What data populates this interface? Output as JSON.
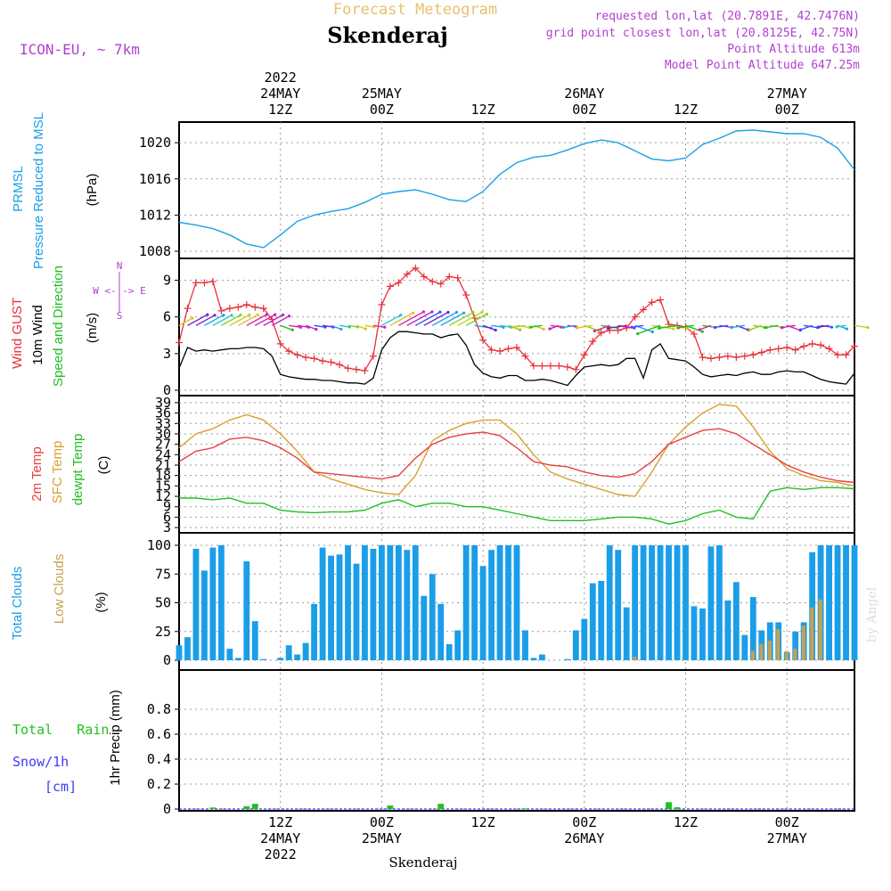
{
  "header": {
    "title": "Skenderaj",
    "subtitle": "Forecast Meteogram",
    "model": "ICON-EU, ~ 7km",
    "requested": "requested lon,lat (20.7891E, 42.7476N)",
    "gridpoint": "grid point closest lon,lat (20.8125E, 42.75N)",
    "point_alt": "Point Altitude 613m",
    "model_alt": "Model Point Altitude 647.25m",
    "footer": "Skenderaj",
    "credit": "by Angel"
  },
  "time_axis": {
    "year": "2022",
    "ticks": [
      {
        "t": 12,
        "hour": "12Z",
        "date": "24MAY",
        "year": "2022"
      },
      {
        "t": 24,
        "hour": "00Z",
        "date": "25MAY"
      },
      {
        "t": 36,
        "hour": "12Z",
        "date": ""
      },
      {
        "t": 48,
        "hour": "00Z",
        "date": "26MAY"
      },
      {
        "t": 60,
        "hour": "12Z",
        "date": ""
      },
      {
        "t": 72,
        "hour": "00Z",
        "date": "27MAY"
      }
    ]
  },
  "colors": {
    "pressure": "#1aa0ea",
    "gust": "#e8303a",
    "wind": "#000000",
    "temp2m": "#e84040",
    "sfc": "#d9a030",
    "dewpt": "#20c020",
    "total_clouds": "#1a9ee8",
    "low_clouds": "#c8a050",
    "rain": "#20c020",
    "snow": "#3a3aff",
    "magenta": "#b040d0",
    "gold": "#e8c070"
  },
  "panel_labels": {
    "pressure": {
      "name1": "PRMSL",
      "name2": "Pressure Reduced to MSL",
      "unit": "(hPa)"
    },
    "wind": {
      "gust": "Wind GUST",
      "wind": "10m Wind",
      "dir": "Speed and Direction",
      "unit": "(m/s)",
      "compass_we": "W <-|-> E",
      "compass_n": "N",
      "compass_s": "S"
    },
    "temp": {
      "t2m": "2m Temp",
      "sfc": "SFC Temp",
      "dew": "dewpt Temp",
      "unit": "(C)"
    },
    "clouds": {
      "total": "Total Clouds",
      "low": "Low Clouds",
      "unit": "(%)"
    },
    "precip": {
      "rain": "Total   Rain",
      "snow": "Snow/1h",
      "snow_unit": "[cm]",
      "ylabel": "1hr Precip (mm)"
    }
  },
  "chart_data": [
    {
      "type": "line",
      "panel": "pressure",
      "title": "PRMSL Pressure Reduced to MSL",
      "ylabel": "(hPa)",
      "ylim": [
        1008,
        1021
      ],
      "yticks": [
        1008,
        1012,
        1016,
        1020
      ],
      "x": [
        0,
        2,
        4,
        6,
        8,
        10,
        12,
        14,
        16,
        18,
        20,
        22,
        24,
        26,
        28,
        30,
        32,
        34,
        36,
        38,
        40,
        42,
        44,
        46,
        48,
        50,
        52,
        54,
        56,
        58,
        60,
        62,
        64,
        66,
        68,
        70,
        72,
        74,
        76,
        78,
        80
      ],
      "series": [
        {
          "name": "PRMSL",
          "values": [
            1011.2,
            1010.9,
            1010.5,
            1009.8,
            1008.8,
            1008.4,
            1009.8,
            1011.3,
            1012.0,
            1012.4,
            1012.7,
            1013.4,
            1014.3,
            1014.6,
            1014.8,
            1014.3,
            1013.7,
            1013.5,
            1014.6,
            1016.5,
            1017.8,
            1018.4,
            1018.6,
            1019.2,
            1019.9,
            1020.3,
            1020.0,
            1019.1,
            1018.2,
            1018.0,
            1018.3,
            1019.8,
            1020.5,
            1021.3,
            1021.4,
            1021.2,
            1021.0,
            1021.0,
            1020.6,
            1019.4,
            1017.0
          ]
        }
      ]
    },
    {
      "type": "line",
      "panel": "wind",
      "ylabel": "(m/s)",
      "ylim": [
        0,
        10.5
      ],
      "yticks": [
        0,
        3,
        6,
        9
      ],
      "x": [
        0,
        1,
        2,
        3,
        4,
        5,
        6,
        7,
        8,
        9,
        10,
        11,
        12,
        13,
        14,
        15,
        16,
        17,
        18,
        19,
        20,
        21,
        22,
        23,
        24,
        25,
        26,
        27,
        28,
        29,
        30,
        31,
        32,
        33,
        34,
        35,
        36,
        37,
        38,
        39,
        40,
        41,
        42,
        43,
        44,
        45,
        46,
        47,
        48,
        49,
        50,
        51,
        52,
        53,
        54,
        55,
        56,
        57,
        58,
        59,
        60,
        61,
        62,
        63,
        64,
        65,
        66,
        67,
        68,
        69,
        70,
        71,
        72,
        73,
        74,
        75,
        76,
        77,
        78,
        79,
        80
      ],
      "series": [
        {
          "name": "Wind GUST",
          "values": [
            3.9,
            6.7,
            8.8,
            8.8,
            8.9,
            6.5,
            6.7,
            6.8,
            7.0,
            6.8,
            6.7,
            5.8,
            3.8,
            3.2,
            2.9,
            2.7,
            2.6,
            2.4,
            2.3,
            2.1,
            1.8,
            1.7,
            1.6,
            2.8,
            7.0,
            8.5,
            8.8,
            9.5,
            10.0,
            9.3,
            8.9,
            8.7,
            9.3,
            9.2,
            7.8,
            5.9,
            4.1,
            3.3,
            3.2,
            3.4,
            3.5,
            2.8,
            2.0,
            2.0,
            2.0,
            2.0,
            1.9,
            1.7,
            2.9,
            4.0,
            4.7,
            4.9,
            4.9,
            5.1,
            6.0,
            6.6,
            7.2,
            7.4,
            5.4,
            5.3,
            5.2,
            4.6,
            2.7,
            2.6,
            2.7,
            2.8,
            2.7,
            2.8,
            2.9,
            3.1,
            3.3,
            3.4,
            3.5,
            3.3,
            3.6,
            3.8,
            3.7,
            3.4,
            2.9,
            2.9,
            3.6
          ]
        },
        {
          "name": "10m Wind",
          "values": [
            1.8,
            3.5,
            3.2,
            3.3,
            3.2,
            3.3,
            3.4,
            3.4,
            3.5,
            3.5,
            3.4,
            2.8,
            1.3,
            1.1,
            1.0,
            0.9,
            0.9,
            0.8,
            0.8,
            0.7,
            0.6,
            0.6,
            0.5,
            1.0,
            3.3,
            4.3,
            4.8,
            4.8,
            4.7,
            4.6,
            4.6,
            4.3,
            4.5,
            4.6,
            3.7,
            2.1,
            1.4,
            1.1,
            1.0,
            1.2,
            1.2,
            0.8,
            0.8,
            0.9,
            0.8,
            0.6,
            0.4,
            1.2,
            1.9,
            2.0,
            2.1,
            2.0,
            2.1,
            2.6,
            2.6,
            1.0,
            3.3,
            3.8,
            2.6,
            2.5,
            2.4,
            1.9,
            1.3,
            1.1,
            1.2,
            1.3,
            1.2,
            1.4,
            1.5,
            1.3,
            1.3,
            1.5,
            1.6,
            1.5,
            1.5,
            1.2,
            0.9,
            0.7,
            0.6,
            0.5,
            1.4
          ]
        }
      ]
    },
    {
      "type": "line",
      "panel": "temperature",
      "ylabel": "(C)",
      "ylim": [
        2,
        40
      ],
      "yticks": [
        3,
        6,
        9,
        12,
        15,
        18,
        21,
        24,
        27,
        30,
        33,
        36,
        39
      ],
      "x": [
        0,
        2,
        4,
        6,
        8,
        10,
        12,
        14,
        16,
        18,
        20,
        22,
        24,
        26,
        28,
        30,
        32,
        34,
        36,
        38,
        40,
        42,
        44,
        46,
        48,
        50,
        52,
        54,
        56,
        58,
        60,
        62,
        64,
        66,
        68,
        70,
        72,
        74,
        76,
        78,
        80
      ],
      "series": [
        {
          "name": "2m Temp",
          "values": [
            22,
            25,
            26,
            28.5,
            29,
            28,
            26,
            23,
            19,
            18.5,
            18,
            17.5,
            17,
            18,
            23,
            27,
            29,
            30,
            30.5,
            29.5,
            26,
            22,
            21,
            20.5,
            19,
            18,
            17.5,
            18.5,
            22,
            27,
            29,
            31,
            31.5,
            30,
            27,
            24,
            21,
            19,
            17.5,
            16.5,
            16
          ]
        },
        {
          "name": "SFC Temp",
          "values": [
            26,
            30,
            31.5,
            34,
            35.5,
            34,
            30,
            25,
            19,
            17,
            15.5,
            14,
            13,
            12.5,
            18,
            28,
            31,
            33,
            34,
            34,
            30,
            24,
            19,
            17,
            15.5,
            14,
            12.5,
            12,
            19,
            27,
            32,
            36,
            38.5,
            38,
            32,
            25,
            20,
            18,
            16.5,
            16,
            15
          ]
        },
        {
          "name": "dewpt Temp",
          "values": [
            11.5,
            11.5,
            11,
            11.5,
            10,
            10,
            8,
            7.5,
            7.3,
            7.5,
            7.5,
            8,
            10,
            11,
            9,
            10,
            10,
            9,
            9,
            8,
            7,
            6,
            5,
            5,
            5,
            5.5,
            6,
            6,
            5.5,
            4,
            5,
            7,
            8,
            6,
            5.5,
            13.5,
            14.5,
            14,
            14.5,
            14.5,
            14.2
          ]
        }
      ]
    },
    {
      "type": "bar",
      "panel": "clouds",
      "ylabel": "(%)",
      "ylim": [
        0,
        100
      ],
      "yticks": [
        0,
        25,
        50,
        75,
        100
      ],
      "x": [
        0,
        1,
        2,
        3,
        4,
        5,
        6,
        7,
        8,
        9,
        10,
        11,
        12,
        13,
        14,
        15,
        16,
        17,
        18,
        19,
        20,
        21,
        22,
        23,
        24,
        25,
        26,
        27,
        28,
        29,
        30,
        31,
        32,
        33,
        34,
        35,
        36,
        37,
        38,
        39,
        40,
        41,
        42,
        43,
        44,
        45,
        46,
        47,
        48,
        49,
        50,
        51,
        52,
        53,
        54,
        55,
        56,
        57,
        58,
        59,
        60,
        61,
        62,
        63,
        64,
        65,
        66,
        67,
        68,
        69,
        70,
        71,
        72,
        73,
        74,
        75,
        76,
        77,
        78,
        79,
        80
      ],
      "series": [
        {
          "name": "Total Clouds",
          "values": [
            13,
            20,
            97,
            78,
            98,
            100,
            10,
            2,
            86,
            34,
            1,
            0,
            2,
            13,
            5,
            15,
            49,
            98,
            91,
            92,
            100,
            84,
            100,
            97,
            100,
            100,
            100,
            96,
            100,
            56,
            75,
            49,
            14,
            26,
            100,
            100,
            82,
            96,
            100,
            100,
            100,
            26,
            2,
            5,
            0,
            0,
            1,
            26,
            36,
            67,
            69,
            100,
            96,
            46,
            100,
            100,
            100,
            100,
            100,
            100,
            100,
            47,
            45,
            99,
            100,
            52,
            68,
            22,
            55,
            26,
            33,
            33,
            7,
            25,
            33,
            94,
            100,
            100,
            100,
            100,
            100
          ]
        },
        {
          "name": "Low Clouds",
          "values": [
            0,
            0,
            0,
            0,
            0,
            0,
            0,
            0,
            0,
            0,
            0,
            0,
            0,
            0,
            0,
            0,
            0,
            0,
            0,
            0,
            0,
            0,
            0,
            0,
            0,
            0,
            0,
            0,
            0,
            0,
            0,
            0,
            0,
            0,
            0,
            0,
            0,
            0,
            0,
            0,
            0,
            0,
            0,
            0,
            0,
            0,
            0,
            0,
            0,
            0,
            0,
            0,
            0,
            0,
            3,
            0,
            0,
            0,
            0,
            0,
            0,
            0,
            0,
            0,
            0,
            0,
            0,
            0,
            8,
            14,
            17,
            27,
            8,
            10,
            30,
            46,
            53,
            0,
            0,
            0,
            0
          ]
        }
      ]
    },
    {
      "type": "bar",
      "panel": "precipitation",
      "ylabel": "1hr Precip (mm)",
      "ylim": [
        0,
        1.0
      ],
      "yticks": [
        0,
        0.2,
        0.4,
        0.6,
        0.8
      ],
      "x": [
        4,
        8,
        9,
        25,
        31,
        41,
        58,
        59
      ],
      "series": [
        {
          "name": "Total Rain",
          "values": [
            0.012,
            0.022,
            0.042,
            0.028,
            0.042,
            0.005,
            0.055,
            0.015
          ]
        }
      ]
    }
  ]
}
